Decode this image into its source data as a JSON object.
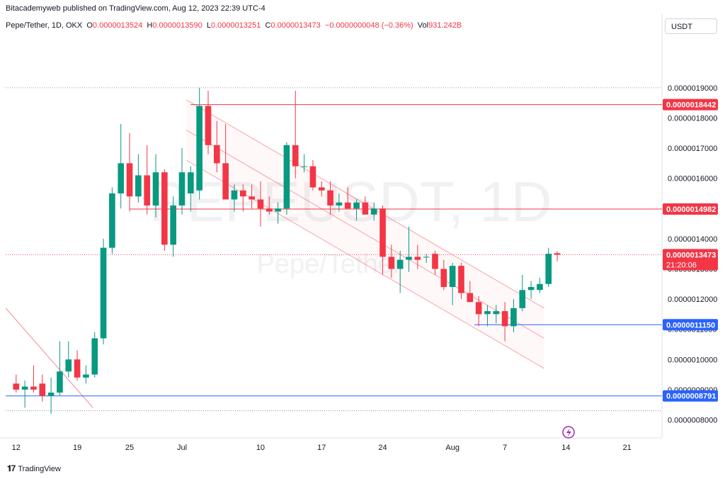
{
  "header": {
    "publish_line": "Bitacademyweb published on TradingView.com, Aug 12, 2023 22:39 UTC-4"
  },
  "legend": {
    "symbol": "Pepe/Tether, 1D, OKX",
    "open_label": "O",
    "open": "0.0000013524",
    "high_label": "H",
    "high": "0.0000013590",
    "low_label": "L",
    "low": "0.0000013251",
    "close_label": "C",
    "close": "0.0000013473",
    "change": "−0.0000000048 (−0.36%)",
    "vol_label": "Vol",
    "vol": "931.242B"
  },
  "currency": "USDT",
  "watermark": {
    "ticker": "PEPEUSDT, 1D",
    "name": "Pepe/Tether"
  },
  "footer": {
    "brand": "TradingView",
    "logo_icon": "tradingview-logo-icon"
  },
  "colors": {
    "up": "#089981",
    "down": "#f23645",
    "support": "#2962ff",
    "resistance": "#f23645"
  },
  "chart_data": {
    "type": "candlestick",
    "yticks": [
      "0.0000008000",
      "0.0000009000",
      "0.0000010000",
      "0.0000011000",
      "0.0000012000",
      "0.0000013000",
      "0.0000014000",
      "0.0000015000",
      "0.0000016000",
      "0.0000017000",
      "0.0000018000",
      "0.0000019000"
    ],
    "ytick_values": [
      8.0,
      9.0,
      10.0,
      11.0,
      12.0,
      13.0,
      14.0,
      15.0,
      16.0,
      17.0,
      18.0,
      19.0
    ],
    "ylim": [
      7.4,
      20.5
    ],
    "y_unit_note": "",
    "xticks": [
      {
        "label": "12",
        "i": 0
      },
      {
        "label": "19",
        "i": 7
      },
      {
        "label": "25",
        "i": 13
      },
      {
        "label": "Jul",
        "i": 19
      },
      {
        "label": "10",
        "i": 28
      },
      {
        "label": "17",
        "i": 35
      },
      {
        "label": "24",
        "i": 42
      },
      {
        "label": "Aug",
        "i": 50
      },
      {
        "label": "7",
        "i": 56
      },
      {
        "label": "14",
        "i": 63
      },
      {
        "label": "21",
        "i": 70
      }
    ],
    "x_count_range": [
      -1.2,
      74
    ],
    "price_lines": [
      {
        "label": "0.0000018442",
        "value": 18.442,
        "color": "#f23645",
        "from_i": 20
      },
      {
        "label": "0.0000014982",
        "value": 14.982,
        "color": "#f23645",
        "from_i": 13
      },
      {
        "label": "0.0000011150",
        "value": 11.15,
        "color": "#2962ff",
        "from_i": 52.5
      },
      {
        "label": "0.0000008791",
        "value": 8.791,
        "color": "#2962ff",
        "from_i": -1.2
      }
    ],
    "last_price": {
      "label": "0.0000013473",
      "countdown": "21:20:06",
      "value": 13.473
    },
    "dotted_levels": [
      19.0,
      8.3
    ],
    "channel": {
      "upper": [
        [
          19.5,
          18.6
        ],
        [
          60.5,
          11.7
        ]
      ],
      "middle": [
        [
          19.5,
          17.6
        ],
        [
          60.5,
          10.7
        ]
      ],
      "lower": [
        [
          19.5,
          16.6
        ],
        [
          60.5,
          9.7
        ]
      ]
    },
    "downtrend_line": [
      [
        -1.2,
        11.7
      ],
      [
        8.8,
        8.4
      ]
    ],
    "candles": [
      {
        "o": 9.2,
        "h": 9.5,
        "l": 8.9,
        "c": 9.0
      },
      {
        "o": 9.0,
        "h": 9.3,
        "l": 8.4,
        "c": 9.1
      },
      {
        "o": 9.1,
        "h": 9.8,
        "l": 8.9,
        "c": 9.0
      },
      {
        "o": 9.2,
        "h": 9.5,
        "l": 8.6,
        "c": 8.8
      },
      {
        "o": 8.8,
        "h": 9.4,
        "l": 8.2,
        "c": 8.9
      },
      {
        "o": 8.9,
        "h": 10.6,
        "l": 8.8,
        "c": 9.6
      },
      {
        "o": 9.6,
        "h": 10.6,
        "l": 9.4,
        "c": 10.0
      },
      {
        "o": 10.0,
        "h": 10.3,
        "l": 9.3,
        "c": 9.4
      },
      {
        "o": 9.4,
        "h": 9.8,
        "l": 9.2,
        "c": 9.5
      },
      {
        "o": 9.5,
        "h": 10.9,
        "l": 9.4,
        "c": 10.7
      },
      {
        "o": 10.7,
        "h": 14.0,
        "l": 10.5,
        "c": 13.7
      },
      {
        "o": 13.7,
        "h": 15.7,
        "l": 13.5,
        "c": 15.5
      },
      {
        "o": 15.5,
        "h": 17.8,
        "l": 15.0,
        "c": 16.5
      },
      {
        "o": 16.5,
        "h": 17.5,
        "l": 14.9,
        "c": 15.4
      },
      {
        "o": 15.4,
        "h": 16.8,
        "l": 15.2,
        "c": 16.1
      },
      {
        "o": 16.1,
        "h": 17.1,
        "l": 14.8,
        "c": 15.1
      },
      {
        "o": 15.1,
        "h": 16.8,
        "l": 14.7,
        "c": 16.2
      },
      {
        "o": 16.2,
        "h": 16.3,
        "l": 13.6,
        "c": 13.8
      },
      {
        "o": 13.8,
        "h": 15.4,
        "l": 13.4,
        "c": 15.1
      },
      {
        "o": 15.1,
        "h": 17.0,
        "l": 14.8,
        "c": 16.2
      },
      {
        "o": 15.5,
        "h": 16.4,
        "l": 14.9,
        "c": 16.2
      },
      {
        "o": 15.6,
        "h": 19.0,
        "l": 15.3,
        "c": 18.4
      },
      {
        "o": 18.4,
        "h": 18.9,
        "l": 16.8,
        "c": 17.1
      },
      {
        "o": 17.1,
        "h": 17.9,
        "l": 16.2,
        "c": 16.5
      },
      {
        "o": 16.5,
        "h": 17.8,
        "l": 15.3,
        "c": 15.3
      },
      {
        "o": 15.3,
        "h": 15.8,
        "l": 14.9,
        "c": 15.6
      },
      {
        "o": 15.6,
        "h": 15.8,
        "l": 14.9,
        "c": 15.4
      },
      {
        "o": 15.4,
        "h": 15.8,
        "l": 15.0,
        "c": 15.3
      },
      {
        "o": 15.3,
        "h": 15.9,
        "l": 14.4,
        "c": 15.0
      },
      {
        "o": 15.0,
        "h": 15.4,
        "l": 14.8,
        "c": 14.9
      },
      {
        "o": 14.9,
        "h": 15.2,
        "l": 14.5,
        "c": 15.0
      },
      {
        "o": 15.0,
        "h": 17.2,
        "l": 14.8,
        "c": 17.1
      },
      {
        "o": 17.1,
        "h": 18.9,
        "l": 16.0,
        "c": 16.4
      },
      {
        "o": 16.4,
        "h": 16.8,
        "l": 16.2,
        "c": 16.4
      },
      {
        "o": 16.4,
        "h": 16.6,
        "l": 15.6,
        "c": 15.7
      },
      {
        "o": 15.7,
        "h": 15.9,
        "l": 15.4,
        "c": 15.6
      },
      {
        "o": 15.6,
        "h": 15.9,
        "l": 14.8,
        "c": 15.1
      },
      {
        "o": 15.1,
        "h": 15.5,
        "l": 14.9,
        "c": 15.2
      },
      {
        "o": 15.2,
        "h": 15.7,
        "l": 15.0,
        "c": 15.0
      },
      {
        "o": 15.0,
        "h": 15.3,
        "l": 14.6,
        "c": 15.2
      },
      {
        "o": 15.2,
        "h": 15.4,
        "l": 14.8,
        "c": 14.8
      },
      {
        "o": 14.8,
        "h": 15.2,
        "l": 14.6,
        "c": 15.0
      },
      {
        "o": 15.0,
        "h": 15.1,
        "l": 12.8,
        "c": 13.4
      },
      {
        "o": 13.4,
        "h": 13.8,
        "l": 12.7,
        "c": 13.0
      },
      {
        "o": 13.0,
        "h": 13.6,
        "l": 12.2,
        "c": 13.3
      },
      {
        "o": 13.3,
        "h": 14.4,
        "l": 12.9,
        "c": 13.4
      },
      {
        "o": 13.4,
        "h": 13.8,
        "l": 13.0,
        "c": 13.3
      },
      {
        "o": 13.4,
        "h": 13.5,
        "l": 13.2,
        "c": 13.4
      },
      {
        "o": 13.5,
        "h": 13.6,
        "l": 12.8,
        "c": 13.0
      },
      {
        "o": 13.0,
        "h": 13.3,
        "l": 12.3,
        "c": 12.4
      },
      {
        "o": 12.4,
        "h": 13.2,
        "l": 11.8,
        "c": 13.1
      },
      {
        "o": 13.1,
        "h": 13.2,
        "l": 12.0,
        "c": 12.2
      },
      {
        "o": 12.2,
        "h": 12.6,
        "l": 12.0,
        "c": 11.9
      },
      {
        "o": 11.9,
        "h": 12.1,
        "l": 11.1,
        "c": 11.5
      },
      {
        "o": 11.5,
        "h": 11.8,
        "l": 11.1,
        "c": 11.6
      },
      {
        "o": 11.5,
        "h": 11.8,
        "l": 11.2,
        "c": 11.6
      },
      {
        "o": 11.6,
        "h": 11.9,
        "l": 10.6,
        "c": 11.1
      },
      {
        "o": 11.1,
        "h": 12.0,
        "l": 10.9,
        "c": 11.7
      },
      {
        "o": 11.7,
        "h": 12.8,
        "l": 11.6,
        "c": 12.3
      },
      {
        "o": 12.3,
        "h": 12.6,
        "l": 12.0,
        "c": 12.4
      },
      {
        "o": 12.3,
        "h": 12.7,
        "l": 12.2,
        "c": 12.5
      },
      {
        "o": 12.5,
        "h": 13.7,
        "l": 12.4,
        "c": 13.5
      },
      {
        "o": 13.52,
        "h": 13.59,
        "l": 13.25,
        "c": 13.47
      }
    ]
  }
}
